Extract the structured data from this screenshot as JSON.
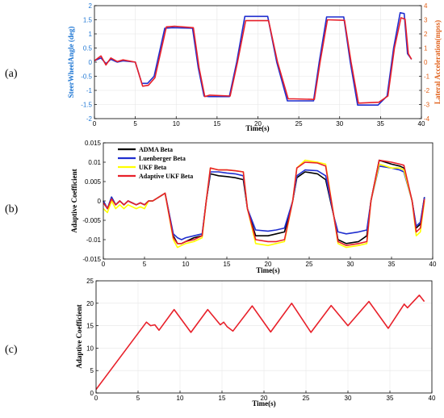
{
  "chart_data": [
    {
      "type": "line",
      "panel_label": "(a)",
      "xlabel": "Time(s)",
      "ylabel": "SteerWheelAngle (deg)",
      "ylabel_right": "Lateral Acceleration(mpss)",
      "xlim": [
        0,
        40
      ],
      "ylim": [
        -2,
        2
      ],
      "ylim_right": [
        -4,
        4
      ],
      "xticks": [
        0,
        5,
        10,
        15,
        20,
        25,
        30,
        35,
        40
      ],
      "yticks": [
        -2,
        -1.5,
        -1,
        -0.5,
        0,
        0.5,
        1,
        1.5,
        2
      ],
      "yticks_right": [
        -4,
        -3,
        -2,
        -1,
        0,
        1,
        2,
        3,
        4
      ],
      "axis_colors": {
        "left": "#1f77d4",
        "right": "#e0601a"
      },
      "series": [
        {
          "axis": "left",
          "color": "#1f2ecf",
          "x": [
            0,
            0.8,
            1.4,
            2.0,
            2.8,
            3.5,
            5.0,
            5.8,
            6.5,
            7.3,
            8.6,
            9.6,
            12.0,
            12.7,
            13.4,
            14.0,
            16.5,
            17.4,
            18.4,
            21.2,
            22.3,
            23.6,
            24.3,
            26.8,
            27.5,
            28.4,
            30.5,
            31.3,
            32.2,
            34.7,
            35.8,
            36.6,
            37.4,
            37.9,
            38.3,
            38.8
          ],
          "y": [
            0.05,
            0.15,
            -0.05,
            0.1,
            0.0,
            0.05,
            0.0,
            -0.75,
            -0.75,
            -0.5,
            1.2,
            1.22,
            1.2,
            -0.2,
            -1.2,
            -1.22,
            -1.22,
            0.0,
            1.62,
            1.62,
            0.0,
            -1.37,
            -1.37,
            -1.37,
            0.0,
            1.6,
            1.6,
            0.0,
            -1.52,
            -1.52,
            -1.2,
            0.5,
            1.75,
            1.72,
            0.3,
            0.1
          ]
        },
        {
          "axis": "left",
          "color": "#e8202a",
          "x": [
            0,
            0.8,
            1.4,
            2.0,
            2.8,
            3.5,
            5.0,
            5.9,
            6.6,
            7.4,
            8.8,
            9.8,
            12.1,
            12.8,
            13.5,
            14.1,
            16.6,
            17.5,
            18.5,
            21.3,
            22.4,
            23.7,
            24.4,
            26.9,
            27.6,
            28.5,
            30.6,
            31.4,
            32.3,
            34.8,
            35.9,
            36.7,
            37.5,
            38.0,
            38.4,
            38.8
          ],
          "y": [
            0.05,
            0.22,
            -0.1,
            0.15,
            0.02,
            0.08,
            0.0,
            -0.85,
            -0.82,
            -0.55,
            1.25,
            1.27,
            1.22,
            -0.2,
            -1.22,
            -1.17,
            -1.2,
            0.0,
            1.47,
            1.47,
            0.0,
            -1.3,
            -1.3,
            -1.32,
            0.0,
            1.5,
            1.48,
            0.0,
            -1.45,
            -1.42,
            -1.2,
            0.5,
            1.57,
            1.52,
            0.3,
            0.1
          ]
        }
      ]
    },
    {
      "type": "line",
      "panel_label": "(b)",
      "xlabel": "Time(s)",
      "ylabel": "Adaptive Coefficient",
      "xlim": [
        0,
        40
      ],
      "ylim": [
        -0.015,
        0.015
      ],
      "xticks": [
        0,
        5,
        10,
        15,
        20,
        25,
        30,
        35,
        40
      ],
      "yticks": [
        -0.015,
        -0.01,
        -0.005,
        0,
        0.005,
        0.01,
        0.015
      ],
      "legend": "top-left",
      "series": [
        {
          "name": "ADMA Beta",
          "color": "#000000",
          "x": [
            0,
            0.5,
            1.0,
            1.5,
            2.0,
            2.5,
            3.0,
            3.5,
            4.0,
            4.5,
            5.0,
            5.5,
            6.0,
            7.5,
            8.5,
            9.0,
            9.5,
            10.0,
            11.0,
            12.0,
            12.5,
            13.0,
            14.0,
            15.0,
            16.0,
            17.0,
            17.5,
            18.5,
            20.0,
            21.0,
            22.0,
            23.0,
            23.5,
            24.5,
            26.0,
            27.0,
            28.0,
            28.5,
            29.5,
            31.0,
            32.0,
            32.5,
            33.5,
            35.0,
            36.0,
            36.5,
            37.5,
            38.0,
            38.5,
            39.0
          ],
          "y": [
            0.0,
            -0.002,
            0.001,
            -0.001,
            0.0,
            -0.001,
            0.0,
            -0.0005,
            -0.001,
            -0.0005,
            -0.001,
            0.0,
            0.0,
            0.002,
            -0.009,
            -0.011,
            -0.011,
            -0.0105,
            -0.0095,
            -0.009,
            0.0,
            0.007,
            0.0065,
            0.0063,
            0.006,
            0.0055,
            -0.002,
            -0.009,
            -0.009,
            -0.0085,
            -0.008,
            0.0,
            0.006,
            0.0075,
            0.007,
            0.0055,
            -0.004,
            -0.01,
            -0.011,
            -0.0105,
            -0.009,
            0.0,
            0.0105,
            0.0095,
            0.009,
            0.0085,
            0.0,
            -0.007,
            -0.006,
            0.001
          ]
        },
        {
          "name": "Luenberger Beta",
          "color": "#1f2ecf",
          "x": [
            0,
            0.5,
            1.0,
            1.5,
            2.0,
            2.5,
            3.0,
            3.5,
            4.0,
            4.5,
            5.0,
            5.5,
            6.0,
            7.5,
            8.5,
            9.0,
            9.5,
            10.0,
            11.0,
            12.0,
            12.5,
            13.0,
            14.0,
            15.0,
            16.0,
            17.0,
            17.5,
            18.5,
            20.0,
            21.0,
            22.0,
            23.0,
            23.5,
            24.5,
            26.0,
            27.0,
            28.0,
            28.5,
            29.5,
            31.0,
            32.0,
            32.5,
            33.5,
            35.0,
            36.0,
            36.5,
            37.5,
            38.0,
            38.5,
            39.0
          ],
          "y": [
            0.0,
            -0.002,
            0.001,
            -0.001,
            0.0,
            -0.001,
            0.0,
            -0.0005,
            -0.001,
            -0.0005,
            -0.001,
            0.0,
            0.0,
            0.002,
            -0.0085,
            -0.0095,
            -0.01,
            -0.0095,
            -0.009,
            -0.0085,
            0.0,
            0.0075,
            0.0075,
            0.0072,
            0.007,
            0.0065,
            -0.002,
            -0.0075,
            -0.0078,
            -0.0075,
            -0.007,
            0.0,
            0.0065,
            0.008,
            0.0078,
            0.0065,
            -0.004,
            -0.008,
            -0.0085,
            -0.008,
            -0.0075,
            0.0,
            0.009,
            0.0085,
            0.008,
            0.0075,
            0.0,
            -0.0065,
            -0.0055,
            0.001
          ]
        },
        {
          "name": "UKF Beta",
          "color": "#ffff00",
          "x": [
            0,
            0.5,
            1.0,
            1.5,
            2.0,
            2.5,
            3.0,
            3.5,
            4.0,
            4.5,
            5.0,
            5.5,
            6.0,
            7.5,
            8.5,
            9.0,
            9.5,
            10.0,
            11.0,
            12.0,
            12.5,
            13.0,
            14.0,
            15.0,
            16.0,
            17.0,
            17.5,
            18.5,
            20.0,
            21.0,
            22.0,
            23.0,
            23.5,
            24.5,
            26.0,
            27.0,
            28.0,
            28.5,
            29.5,
            31.0,
            32.0,
            32.5,
            33.5,
            35.0,
            36.0,
            36.5,
            37.5,
            38.0,
            38.5,
            39.0
          ],
          "y": [
            -0.002,
            -0.003,
            0.0,
            -0.002,
            -0.001,
            -0.002,
            -0.001,
            -0.0015,
            -0.002,
            -0.0015,
            -0.002,
            0.0,
            0.0,
            0.002,
            -0.01,
            -0.012,
            -0.0115,
            -0.011,
            -0.0105,
            -0.0095,
            0.0,
            0.0085,
            0.008,
            0.008,
            0.0078,
            0.0075,
            -0.002,
            -0.011,
            -0.0115,
            -0.011,
            -0.0105,
            0.0,
            0.0085,
            0.0105,
            0.01,
            0.0095,
            -0.004,
            -0.011,
            -0.012,
            -0.0115,
            -0.011,
            0.0,
            0.0095,
            0.0085,
            0.0085,
            0.008,
            0.0,
            -0.009,
            -0.008,
            0.0
          ]
        },
        {
          "name": "Adaptive UKF Beta",
          "color": "#e8202a",
          "x": [
            0,
            0.5,
            1.0,
            1.5,
            2.0,
            2.5,
            3.0,
            3.5,
            4.0,
            4.5,
            5.0,
            5.5,
            6.0,
            7.5,
            8.5,
            9.0,
            9.5,
            10.0,
            11.0,
            12.0,
            12.5,
            13.0,
            14.0,
            15.0,
            16.0,
            17.0,
            17.5,
            18.5,
            20.0,
            21.0,
            22.0,
            23.0,
            23.5,
            24.5,
            26.0,
            27.0,
            28.0,
            28.5,
            29.5,
            31.0,
            32.0,
            32.5,
            33.5,
            35.0,
            36.0,
            36.5,
            37.5,
            38.0,
            38.5,
            39.0
          ],
          "y": [
            -0.0005,
            -0.002,
            0.0005,
            -0.001,
            0.0,
            -0.001,
            0.0,
            -0.0005,
            -0.001,
            -0.0005,
            -0.001,
            0.0,
            0.0,
            0.002,
            -0.0095,
            -0.011,
            -0.011,
            -0.0105,
            -0.01,
            -0.009,
            0.0,
            0.0085,
            0.008,
            0.008,
            0.0078,
            0.0075,
            -0.002,
            -0.01,
            -0.0105,
            -0.0105,
            -0.01,
            0.0,
            0.0085,
            0.01,
            0.0098,
            0.009,
            -0.004,
            -0.0105,
            -0.0115,
            -0.011,
            -0.0105,
            0.0,
            0.0105,
            0.01,
            0.0095,
            0.0092,
            0.0,
            -0.008,
            -0.007,
            0.0005
          ]
        }
      ]
    },
    {
      "type": "line",
      "panel_label": "(c)",
      "xlabel": "Time(s)",
      "ylabel": "Adaptive Coefficient",
      "xlim": [
        0,
        40
      ],
      "ylim": [
        0,
        25
      ],
      "xticks": [
        0,
        5,
        10,
        15,
        20,
        25,
        30,
        35,
        40
      ],
      "yticks": [
        0,
        5,
        10,
        15,
        20,
        25
      ],
      "series": [
        {
          "color": "#e8202a",
          "x": [
            0,
            6.0,
            6.5,
            7.0,
            7.5,
            9.3,
            11.3,
            13.3,
            14.8,
            15.2,
            15.6,
            16.3,
            18.6,
            20.8,
            23.3,
            25.6,
            28.0,
            30.0,
            32.5,
            34.8,
            36.7,
            37.1,
            38.5,
            39.1
          ],
          "y": [
            0.8,
            15.8,
            15.0,
            15.2,
            14.0,
            18.6,
            13.5,
            18.6,
            15.2,
            15.8,
            14.8,
            13.8,
            19.4,
            13.6,
            20.0,
            13.5,
            19.5,
            15.0,
            20.4,
            14.4,
            19.8,
            19.0,
            21.8,
            20.4
          ]
        }
      ]
    }
  ]
}
